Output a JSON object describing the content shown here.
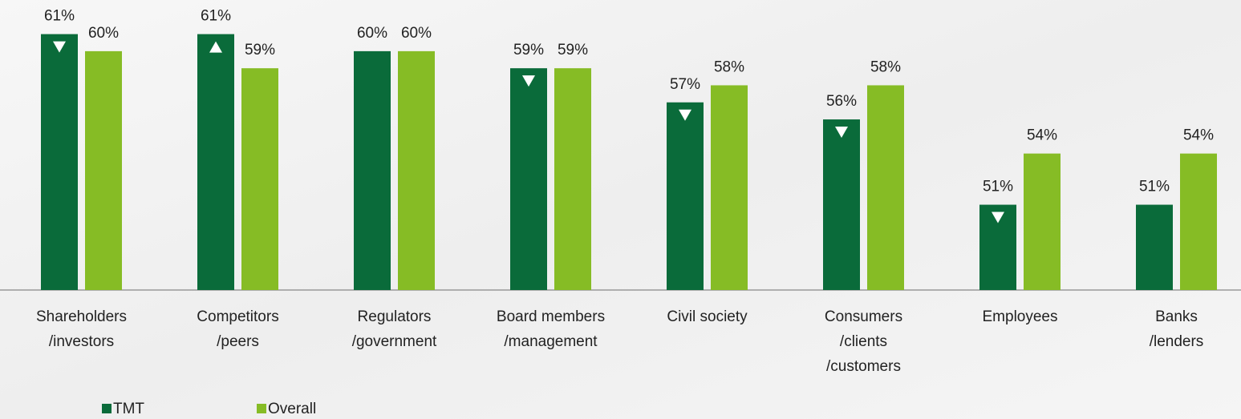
{
  "chart_data": {
    "type": "bar",
    "categories": [
      "Shareholders\n/investors",
      "Competitors\n/peers",
      "Regulators\n/government",
      "Board members\n/management",
      "Civil society",
      "Consumers\n/clients\n/customers",
      "Employees",
      "Banks\n/lenders"
    ],
    "series": [
      {
        "name": "TMT",
        "color": "#0a6b3a",
        "values": [
          61,
          61,
          60,
          59,
          57,
          56,
          51,
          51
        ],
        "value_labels": [
          "61%",
          "61%",
          "60%",
          "59%",
          "57%",
          "56%",
          "51%",
          "51%"
        ],
        "indicators": [
          "down",
          "up",
          null,
          "down",
          "down",
          "down",
          "down",
          null
        ]
      },
      {
        "name": "Overall",
        "color": "#86bc25",
        "values": [
          60,
          59,
          60,
          59,
          58,
          58,
          54,
          54
        ],
        "value_labels": [
          "60%",
          "59%",
          "60%",
          "59%",
          "58%",
          "58%",
          "54%",
          "54%"
        ]
      }
    ],
    "ylim": [
      46,
      63
    ],
    "legend": "bottom-left"
  }
}
